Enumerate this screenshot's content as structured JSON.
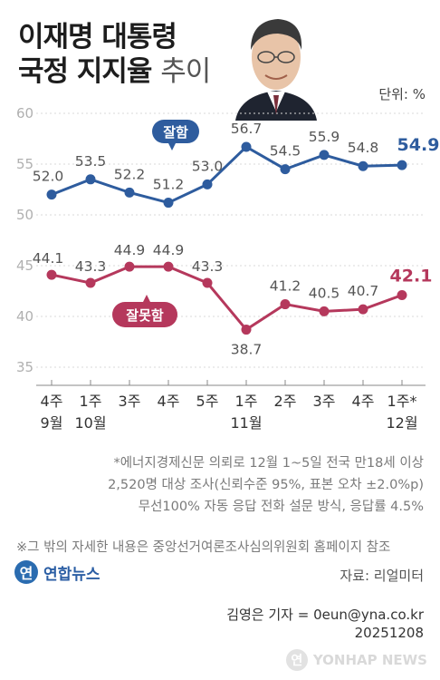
{
  "header": {
    "title_line1": "이재명 대통령",
    "title_line2_bold": "국정 지지율",
    "title_line2_light": "추이",
    "unit": "단위: %"
  },
  "chart_data": {
    "type": "line",
    "ylim": [
      35,
      60
    ],
    "yticks": [
      35,
      40,
      45,
      50,
      55,
      60
    ],
    "x": [
      {
        "week": "4주",
        "month": "9월"
      },
      {
        "week": "1주",
        "month": "10월"
      },
      {
        "week": "3주",
        "month": ""
      },
      {
        "week": "4주",
        "month": ""
      },
      {
        "week": "5주",
        "month": ""
      },
      {
        "week": "1주",
        "month": "11월"
      },
      {
        "week": "2주",
        "month": ""
      },
      {
        "week": "3주",
        "month": ""
      },
      {
        "week": "4주",
        "month": ""
      },
      {
        "week": "1주*",
        "month": "12월"
      }
    ],
    "series": [
      {
        "name": "잘함",
        "color": "#2e5c9e",
        "values": [
          52.0,
          53.5,
          52.2,
          51.2,
          53.0,
          56.7,
          54.5,
          55.9,
          54.8,
          54.9
        ],
        "labels": [
          "52.0",
          "53.5",
          "52.2",
          "51.2",
          "53.0",
          "56.7",
          "54.5",
          "55.9",
          "54.8",
          "54.9"
        ]
      },
      {
        "name": "잘못함",
        "color": "#b5385c",
        "values": [
          44.1,
          43.3,
          44.9,
          44.9,
          43.3,
          38.7,
          41.2,
          40.5,
          40.7,
          42.1
        ],
        "labels": [
          "44.1",
          "43.3",
          "44.9",
          "44.9",
          "43.3",
          "38.7",
          "41.2",
          "40.5",
          "40.7",
          "42.1"
        ]
      }
    ]
  },
  "notes": {
    "line1": "*에너지경제신문 의뢰로 12월 1~5일 전국 만18세 이상",
    "line2": "2,520명 대상 조사(신뢰수준 95%, 표본 오차 ±2.0%p)",
    "line3": "무선100% 자동 응답 전화 설문 방식, 응답률 4.5%",
    "line4": "※그 밖의 자세한 내용은 중앙선거여론조사심의위원회 홈페이지 참조"
  },
  "footer": {
    "logo_text": "연합뉴스",
    "source": "자료: 리얼미터",
    "reporter": "김영은 기자 = 0eun@yna.co.kr",
    "date": "20251208",
    "watermark": "YONHAP NEWS"
  },
  "colors": {
    "good": "#2e5c9e",
    "bad": "#b5385c"
  }
}
